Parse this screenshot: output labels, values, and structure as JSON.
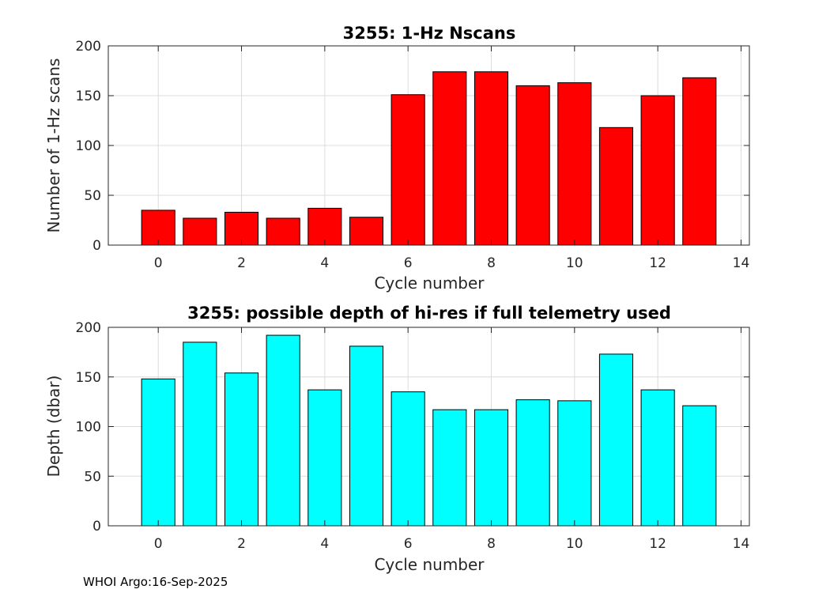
{
  "chart_data": [
    {
      "type": "bar",
      "title": "3255: 1-Hz Nscans",
      "xlabel": "Cycle number",
      "ylabel": "Number of 1-Hz scans",
      "xlim": [
        -1.2,
        14.2
      ],
      "ylim": [
        0,
        200
      ],
      "xticks": [
        0,
        2,
        4,
        6,
        8,
        10,
        12,
        14
      ],
      "yticks": [
        0,
        50,
        100,
        150,
        200
      ],
      "grid": true,
      "bar_color": "#ff0000",
      "categories": [
        0,
        1,
        2,
        3,
        4,
        5,
        6,
        7,
        8,
        9,
        10,
        11,
        12,
        13
      ],
      "values": [
        35,
        27,
        33,
        27,
        37,
        28,
        151,
        174,
        174,
        160,
        163,
        118,
        150,
        168
      ]
    },
    {
      "type": "bar",
      "title": "3255: possible depth of hi-res if full telemetry used",
      "xlabel": "Cycle number",
      "ylabel": "Depth (dbar)",
      "xlim": [
        -1.2,
        14.2
      ],
      "ylim": [
        0,
        200
      ],
      "xticks": [
        0,
        2,
        4,
        6,
        8,
        10,
        12,
        14
      ],
      "yticks": [
        0,
        50,
        100,
        150,
        200
      ],
      "grid": true,
      "bar_color": "#00ffff",
      "categories": [
        0,
        1,
        2,
        3,
        4,
        5,
        6,
        7,
        8,
        9,
        10,
        11,
        12,
        13
      ],
      "values": [
        148,
        185,
        154,
        192,
        137,
        181,
        135,
        117,
        117,
        127,
        126,
        173,
        137,
        121
      ]
    }
  ],
  "footer": "WHOI Argo:16-Sep-2025"
}
